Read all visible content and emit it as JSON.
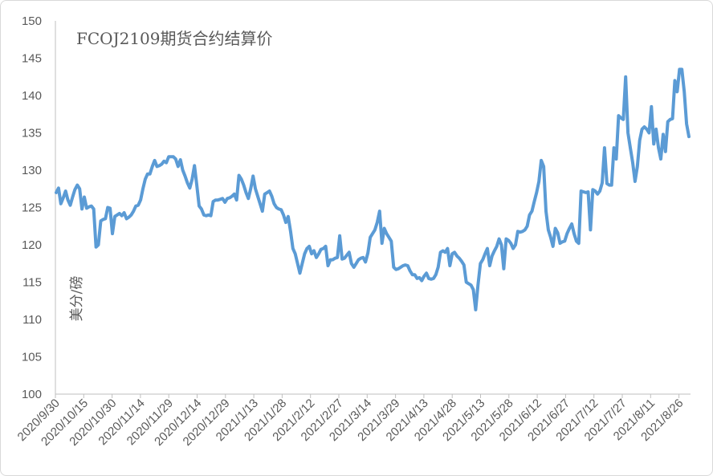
{
  "chart_data": {
    "type": "line",
    "title": "FCOJ2109期货合约结算价",
    "ylabel": "美分/磅",
    "xlabel": "",
    "ylim": [
      100,
      150
    ],
    "yticks": [
      "100",
      "105",
      "110",
      "115",
      "120",
      "125",
      "130",
      "135",
      "140",
      "145",
      "150"
    ],
    "xticks": [
      "2020/9/30",
      "2020/10/15",
      "2020/10/30",
      "2020/11/14",
      "2020/11/29",
      "2020/12/14",
      "2020/12/29",
      "2021/1/13",
      "2021/1/28",
      "2021/2/12",
      "2021/2/27",
      "2021/3/14",
      "2021/3/29",
      "2021/4/13",
      "2021/4/28",
      "2021/5/13",
      "2021/5/28",
      "2021/6/12",
      "2021/6/27",
      "2021/7/12",
      "2021/7/27",
      "2021/8/11",
      "2021/8/26"
    ],
    "grid": false,
    "line_color": "#5b9bd5",
    "series": [
      {
        "values": [
          127.0,
          127.6,
          125.5,
          126.3,
          127.2,
          126.0,
          125.3,
          126.4,
          127.4,
          128.0,
          127.5,
          124.8,
          126.4,
          124.9,
          125.1,
          125.2,
          124.8,
          119.7,
          120.0,
          123.2,
          123.4,
          123.5,
          125.0,
          124.9,
          121.5,
          123.8,
          124.0,
          124.2,
          123.9,
          124.3,
          123.5,
          123.7,
          124.0,
          124.5,
          125.2,
          125.3,
          126.0,
          127.5,
          128.8,
          129.5,
          129.5,
          130.5,
          131.3,
          130.5,
          130.6,
          130.8,
          131.2,
          131.0,
          131.8,
          131.8,
          131.8,
          131.5,
          130.5,
          131.4,
          130.0,
          129.2,
          128.3,
          127.6,
          128.8,
          130.6,
          128.0,
          125.2,
          124.8,
          124.0,
          123.9,
          124.0,
          123.9,
          125.8,
          126.0,
          126.0,
          126.1,
          126.2,
          125.7,
          126.2,
          126.3,
          126.5,
          126.8,
          126.0,
          129.3,
          128.8,
          128.0,
          127.0,
          126.2,
          127.5,
          129.2,
          127.5,
          126.5,
          125.5,
          124.5,
          126.8,
          127.0,
          127.2,
          126.5,
          125.5,
          125.0,
          124.8,
          124.7,
          124.0,
          123.0,
          123.8,
          121.8,
          119.5,
          118.8,
          117.5,
          116.2,
          117.5,
          118.8,
          119.5,
          119.8,
          118.8,
          119.2,
          118.3,
          118.8,
          119.4,
          119.5,
          119.8,
          117.2,
          118.0,
          118.0,
          118.2,
          118.3,
          121.2,
          118.1,
          118.2,
          118.6,
          119.0,
          117.5,
          117.0,
          117.5,
          118.0,
          118.2,
          118.3,
          117.7,
          118.9,
          121.0,
          121.5,
          122.0,
          123.0,
          124.5,
          120.2,
          122.2,
          121.5,
          121.0,
          120.5,
          117.0,
          116.7,
          116.8,
          117.0,
          117.2,
          117.3,
          117.2,
          116.5,
          116.0,
          116.0,
          115.5,
          115.6,
          115.2,
          115.8,
          116.2,
          115.5,
          115.4,
          115.5,
          116.0,
          117.0,
          119.0,
          119.2,
          119.0,
          119.5,
          117.2,
          118.8,
          119.0,
          118.5,
          118.2,
          117.8,
          117.3,
          115.0,
          114.8,
          114.6,
          114.0,
          111.3,
          114.6,
          117.5,
          118.0,
          118.8,
          119.5,
          117.2,
          118.5,
          119.2,
          119.8,
          120.8,
          120.0,
          116.8,
          120.8,
          120.6,
          120.2,
          119.5,
          120.0,
          121.8,
          121.7,
          121.8,
          122.0,
          122.5,
          124.0,
          124.5,
          125.8,
          127.0,
          128.5,
          131.3,
          130.5,
          124.5,
          122.0,
          121.0,
          119.8,
          122.2,
          121.6,
          120.2,
          120.4,
          120.5,
          121.5,
          122.2,
          122.8,
          121.5,
          120.5,
          120.2,
          127.2,
          127.1,
          127.0,
          127.1,
          122.0,
          127.4,
          127.2,
          126.8,
          127.2,
          128.3,
          133.0,
          128.2,
          128.0,
          128.0,
          133.0,
          131.5,
          137.3,
          137.0,
          136.8,
          142.5,
          135.0,
          133.0,
          131.0,
          128.5,
          130.5,
          134.0,
          135.5,
          135.8,
          135.5,
          135.0,
          138.5,
          133.5,
          135.5,
          133.0,
          131.5,
          134.8,
          132.5,
          136.5,
          136.8,
          136.9,
          142.0,
          140.5,
          143.5,
          143.5,
          140.5,
          136.2,
          134.5
        ]
      }
    ]
  }
}
